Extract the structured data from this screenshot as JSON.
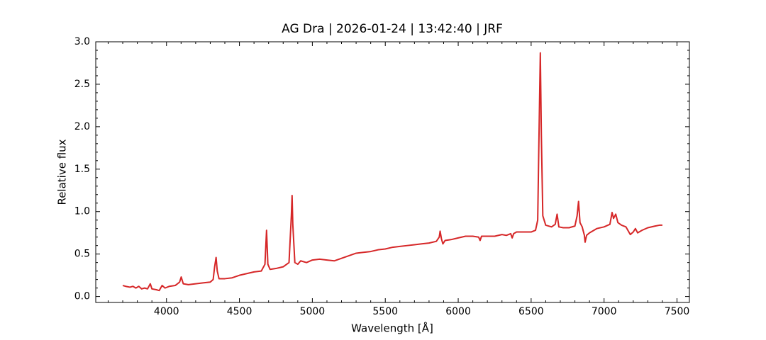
{
  "chart_data": {
    "type": "line",
    "title": "AG Dra | 2026-01-24 | 13:42:40 | JRF",
    "xlabel": "Wavelength [Å]",
    "ylabel": "Relative flux",
    "xlim": [
      3515,
      7585
    ],
    "ylim": [
      -0.07,
      3.0
    ],
    "xticks": [
      4000,
      4500,
      5000,
      5500,
      6000,
      6500,
      7000,
      7500
    ],
    "yticks": [
      {
        "value": 0,
        "label": "0.0"
      },
      {
        "value": 0.5,
        "label": "0.5"
      },
      {
        "value": 1,
        "label": "1.0"
      },
      {
        "value": 1.5,
        "label": "1.5"
      },
      {
        "value": 2,
        "label": "2.0"
      },
      {
        "value": 2.5,
        "label": "2.5"
      },
      {
        "value": 3,
        "label": "3.0"
      }
    ],
    "xminorticks": [
      3600,
      3700,
      3800,
      3900,
      4100,
      4200,
      4300,
      4400,
      4600,
      4700,
      4800,
      4900,
      5100,
      5200,
      5300,
      5400,
      5600,
      5700,
      5800,
      5900,
      6100,
      6200,
      6300,
      6400,
      6600,
      6700,
      6800,
      6900,
      7100,
      7200,
      7300,
      7400,
      7500
    ],
    "yminorticks": [
      0.1,
      0.2,
      0.3,
      0.4,
      0.6,
      0.7,
      0.8,
      0.9,
      1.1,
      1.2,
      1.3,
      1.4,
      1.6,
      1.7,
      1.8,
      1.9,
      2.1,
      2.2,
      2.3,
      2.4,
      2.6,
      2.7,
      2.8,
      2.9
    ],
    "series": [
      {
        "color": "#d62728",
        "x": [
          3700,
          3720,
          3750,
          3770,
          3790,
          3810,
          3830,
          3850,
          3870,
          3889,
          3900,
          3930,
          3950,
          3970,
          3990,
          4020,
          4060,
          4090,
          4101,
          4115,
          4150,
          4200,
          4250,
          4300,
          4320,
          4330,
          4340,
          4348,
          4360,
          4400,
          4450,
          4500,
          4550,
          4600,
          4650,
          4675,
          4686,
          4695,
          4710,
          4750,
          4800,
          4840,
          4856,
          4861,
          4866,
          4880,
          4900,
          4920,
          4960,
          5000,
          5050,
          5100,
          5150,
          5200,
          5250,
          5300,
          5350,
          5400,
          5450,
          5500,
          5550,
          5600,
          5650,
          5700,
          5750,
          5800,
          5850,
          5870,
          5876,
          5885,
          5895,
          5910,
          5950,
          6000,
          6050,
          6100,
          6140,
          6150,
          6160,
          6200,
          6250,
          6300,
          6330,
          6360,
          6370,
          6380,
          6400,
          6450,
          6500,
          6530,
          6545,
          6553,
          6563,
          6570,
          6580,
          6600,
          6640,
          6665,
          6678,
          6690,
          6720,
          6760,
          6800,
          6815,
          6825,
          6835,
          6850,
          6865,
          6870,
          6880,
          6900,
          6950,
          7000,
          7040,
          7055,
          7065,
          7080,
          7095,
          7120,
          7150,
          7180,
          7200,
          7215,
          7230,
          7260,
          7300,
          7350,
          7380,
          7400
        ],
        "values": [
          0.13,
          0.12,
          0.11,
          0.12,
          0.1,
          0.12,
          0.09,
          0.1,
          0.09,
          0.15,
          0.09,
          0.08,
          0.07,
          0.13,
          0.1,
          0.12,
          0.13,
          0.17,
          0.23,
          0.15,
          0.14,
          0.15,
          0.16,
          0.17,
          0.2,
          0.35,
          0.46,
          0.3,
          0.21,
          0.21,
          0.22,
          0.25,
          0.27,
          0.29,
          0.3,
          0.38,
          0.78,
          0.38,
          0.32,
          0.33,
          0.35,
          0.4,
          0.95,
          1.19,
          0.85,
          0.4,
          0.38,
          0.42,
          0.4,
          0.43,
          0.44,
          0.43,
          0.42,
          0.45,
          0.48,
          0.51,
          0.52,
          0.53,
          0.55,
          0.56,
          0.58,
          0.59,
          0.6,
          0.61,
          0.62,
          0.63,
          0.65,
          0.7,
          0.77,
          0.68,
          0.62,
          0.66,
          0.67,
          0.69,
          0.71,
          0.71,
          0.7,
          0.66,
          0.71,
          0.71,
          0.71,
          0.73,
          0.72,
          0.74,
          0.69,
          0.74,
          0.76,
          0.76,
          0.76,
          0.78,
          0.9,
          1.8,
          2.87,
          1.9,
          0.95,
          0.84,
          0.82,
          0.85,
          0.97,
          0.82,
          0.81,
          0.81,
          0.83,
          0.95,
          1.12,
          0.87,
          0.82,
          0.72,
          0.64,
          0.72,
          0.75,
          0.8,
          0.82,
          0.85,
          0.99,
          0.92,
          0.97,
          0.87,
          0.84,
          0.82,
          0.73,
          0.76,
          0.8,
          0.75,
          0.78,
          0.81,
          0.83,
          0.84,
          0.84
        ]
      }
    ]
  }
}
